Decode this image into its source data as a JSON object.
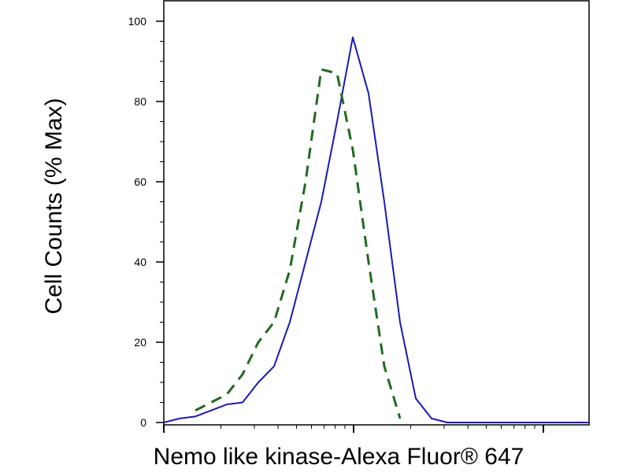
{
  "chart_data": {
    "type": "line",
    "xlabel": "Nemo like kinase-Alexa Fluor® 647",
    "ylabel": "Cell Counts (% Max)",
    "categories": [
      null,
      null,
      null,
      null,
      null,
      null,
      null,
      null,
      null,
      null,
      null,
      null,
      null,
      null,
      null,
      null,
      null,
      null,
      null,
      null,
      null,
      null,
      null,
      null,
      null,
      null,
      null,
      null
    ],
    "series": [
      {
        "color": "#1a1ab4",
        "dash": false,
        "values": [
          0,
          1,
          1.5,
          3,
          4.5,
          5,
          10,
          14,
          25,
          40,
          55,
          75,
          96,
          82,
          55,
          25,
          6,
          1,
          0,
          0,
          0,
          0,
          0,
          0,
          0,
          0,
          0,
          0
        ]
      },
      {
        "color": "#1f6b1f",
        "dash": true,
        "values": [
          null,
          null,
          3,
          5,
          7,
          12,
          20,
          25,
          38,
          60,
          88,
          87,
          68,
          40,
          14,
          1,
          null,
          null,
          null,
          null,
          null,
          null,
          null,
          null,
          null,
          null,
          null,
          null
        ]
      }
    ],
    "ylim": [
      0,
      105
    ],
    "yticks": [
      0,
      20,
      40,
      60,
      80,
      100
    ]
  }
}
